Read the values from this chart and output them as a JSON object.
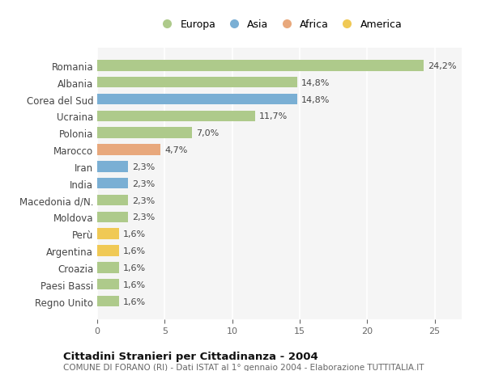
{
  "countries": [
    "Romania",
    "Albania",
    "Corea del Sud",
    "Ucraina",
    "Polonia",
    "Marocco",
    "Iran",
    "India",
    "Macedonia d/N.",
    "Moldova",
    "Perù",
    "Argentina",
    "Croazia",
    "Paesi Bassi",
    "Regno Unito"
  ],
  "values": [
    24.2,
    14.8,
    14.8,
    11.7,
    7.0,
    4.7,
    2.3,
    2.3,
    2.3,
    2.3,
    1.6,
    1.6,
    1.6,
    1.6,
    1.6
  ],
  "continents": [
    "Europa",
    "Europa",
    "Asia",
    "Europa",
    "Europa",
    "Africa",
    "Asia",
    "Asia",
    "Europa",
    "Europa",
    "America",
    "America",
    "Europa",
    "Europa",
    "Europa"
  ],
  "continent_colors": {
    "Europa": "#aeca8b",
    "Asia": "#7aafd4",
    "Africa": "#e8a87c",
    "America": "#f0c955"
  },
  "legend_order": [
    "Europa",
    "Asia",
    "Africa",
    "America"
  ],
  "title": "Cittadini Stranieri per Cittadinanza - 2004",
  "subtitle": "COMUNE DI FORANO (RI) - Dati ISTAT al 1° gennaio 2004 - Elaborazione TUTTITALIA.IT",
  "xlim": [
    0,
    27
  ],
  "xticks": [
    0,
    5,
    10,
    15,
    20,
    25
  ],
  "bar_height": 0.65,
  "background_color": "#ffffff",
  "plot_bg_color": "#f5f5f5",
  "grid_color": "#ffffff"
}
